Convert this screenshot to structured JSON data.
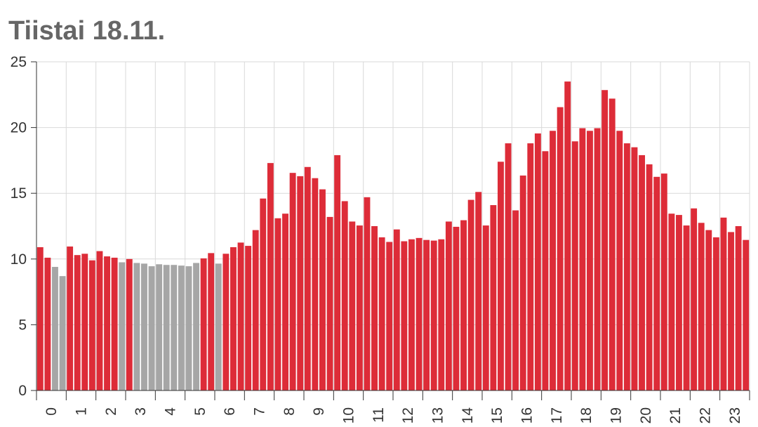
{
  "title": "Tiistai 18.11.",
  "chart_data": {
    "type": "bar",
    "title": "Tiistai 18.11.",
    "xlabel": "",
    "ylabel": "",
    "ylim": [
      0,
      25
    ],
    "yticks": [
      0,
      5,
      10,
      15,
      20,
      25
    ],
    "xticks": [
      "0",
      "1",
      "2",
      "3",
      "4",
      "5",
      "6",
      "7",
      "8",
      "9",
      "10",
      "11",
      "12",
      "13",
      "14",
      "15",
      "16",
      "17",
      "18",
      "19",
      "20",
      "21",
      "22",
      "23"
    ],
    "grid": true,
    "colors": {
      "price": "#dd2c38",
      "gray": "#a6a6a6",
      "grid": "#d9d9d9",
      "axis": "#333333"
    },
    "values": [
      10.9,
      10.1,
      9.4,
      8.7,
      10.95,
      10.3,
      10.4,
      9.9,
      10.6,
      10.2,
      10.1,
      9.75,
      10.0,
      9.7,
      9.65,
      9.45,
      9.6,
      9.55,
      9.55,
      9.5,
      9.45,
      9.7,
      10.05,
      10.45,
      9.65,
      10.4,
      10.9,
      11.25,
      11.0,
      12.2,
      14.6,
      17.3,
      13.1,
      13.45,
      16.55,
      16.3,
      17.0,
      16.15,
      15.3,
      13.2,
      17.9,
      14.4,
      12.85,
      12.55,
      14.7,
      12.5,
      11.65,
      11.3,
      12.25,
      11.35,
      11.5,
      11.6,
      11.45,
      11.4,
      11.5,
      12.85,
      12.45,
      12.95,
      14.5,
      15.1,
      12.55,
      14.1,
      17.4,
      18.8,
      13.7,
      16.35,
      18.8,
      19.55,
      18.2,
      19.75,
      21.55,
      23.5,
      18.95,
      19.95,
      19.75,
      19.95,
      22.85,
      22.2,
      19.75,
      18.8,
      18.5,
      17.9,
      17.2,
      16.25,
      16.5,
      13.45,
      13.35,
      12.55,
      13.85,
      12.75,
      12.2,
      11.65,
      13.15,
      12.05,
      12.5,
      11.45
    ],
    "bar_colors": [
      "red",
      "red",
      "gray",
      "gray",
      "red",
      "red",
      "red",
      "red",
      "red",
      "red",
      "red",
      "gray",
      "red",
      "gray",
      "gray",
      "gray",
      "gray",
      "gray",
      "gray",
      "gray",
      "gray",
      "gray",
      "red",
      "red",
      "gray",
      "red",
      "red",
      "red",
      "red",
      "red",
      "red",
      "red",
      "red",
      "red",
      "red",
      "red",
      "red",
      "red",
      "red",
      "red",
      "red",
      "red",
      "red",
      "red",
      "red",
      "red",
      "red",
      "red",
      "red",
      "red",
      "red",
      "red",
      "red",
      "red",
      "red",
      "red",
      "red",
      "red",
      "red",
      "red",
      "red",
      "red",
      "red",
      "red",
      "red",
      "red",
      "red",
      "red",
      "red",
      "red",
      "red",
      "red",
      "red",
      "red",
      "red",
      "red",
      "red",
      "red",
      "red",
      "red",
      "red",
      "red",
      "red",
      "red",
      "red",
      "red",
      "red",
      "red",
      "red",
      "red",
      "red",
      "red",
      "red",
      "red",
      "red",
      "red"
    ]
  }
}
